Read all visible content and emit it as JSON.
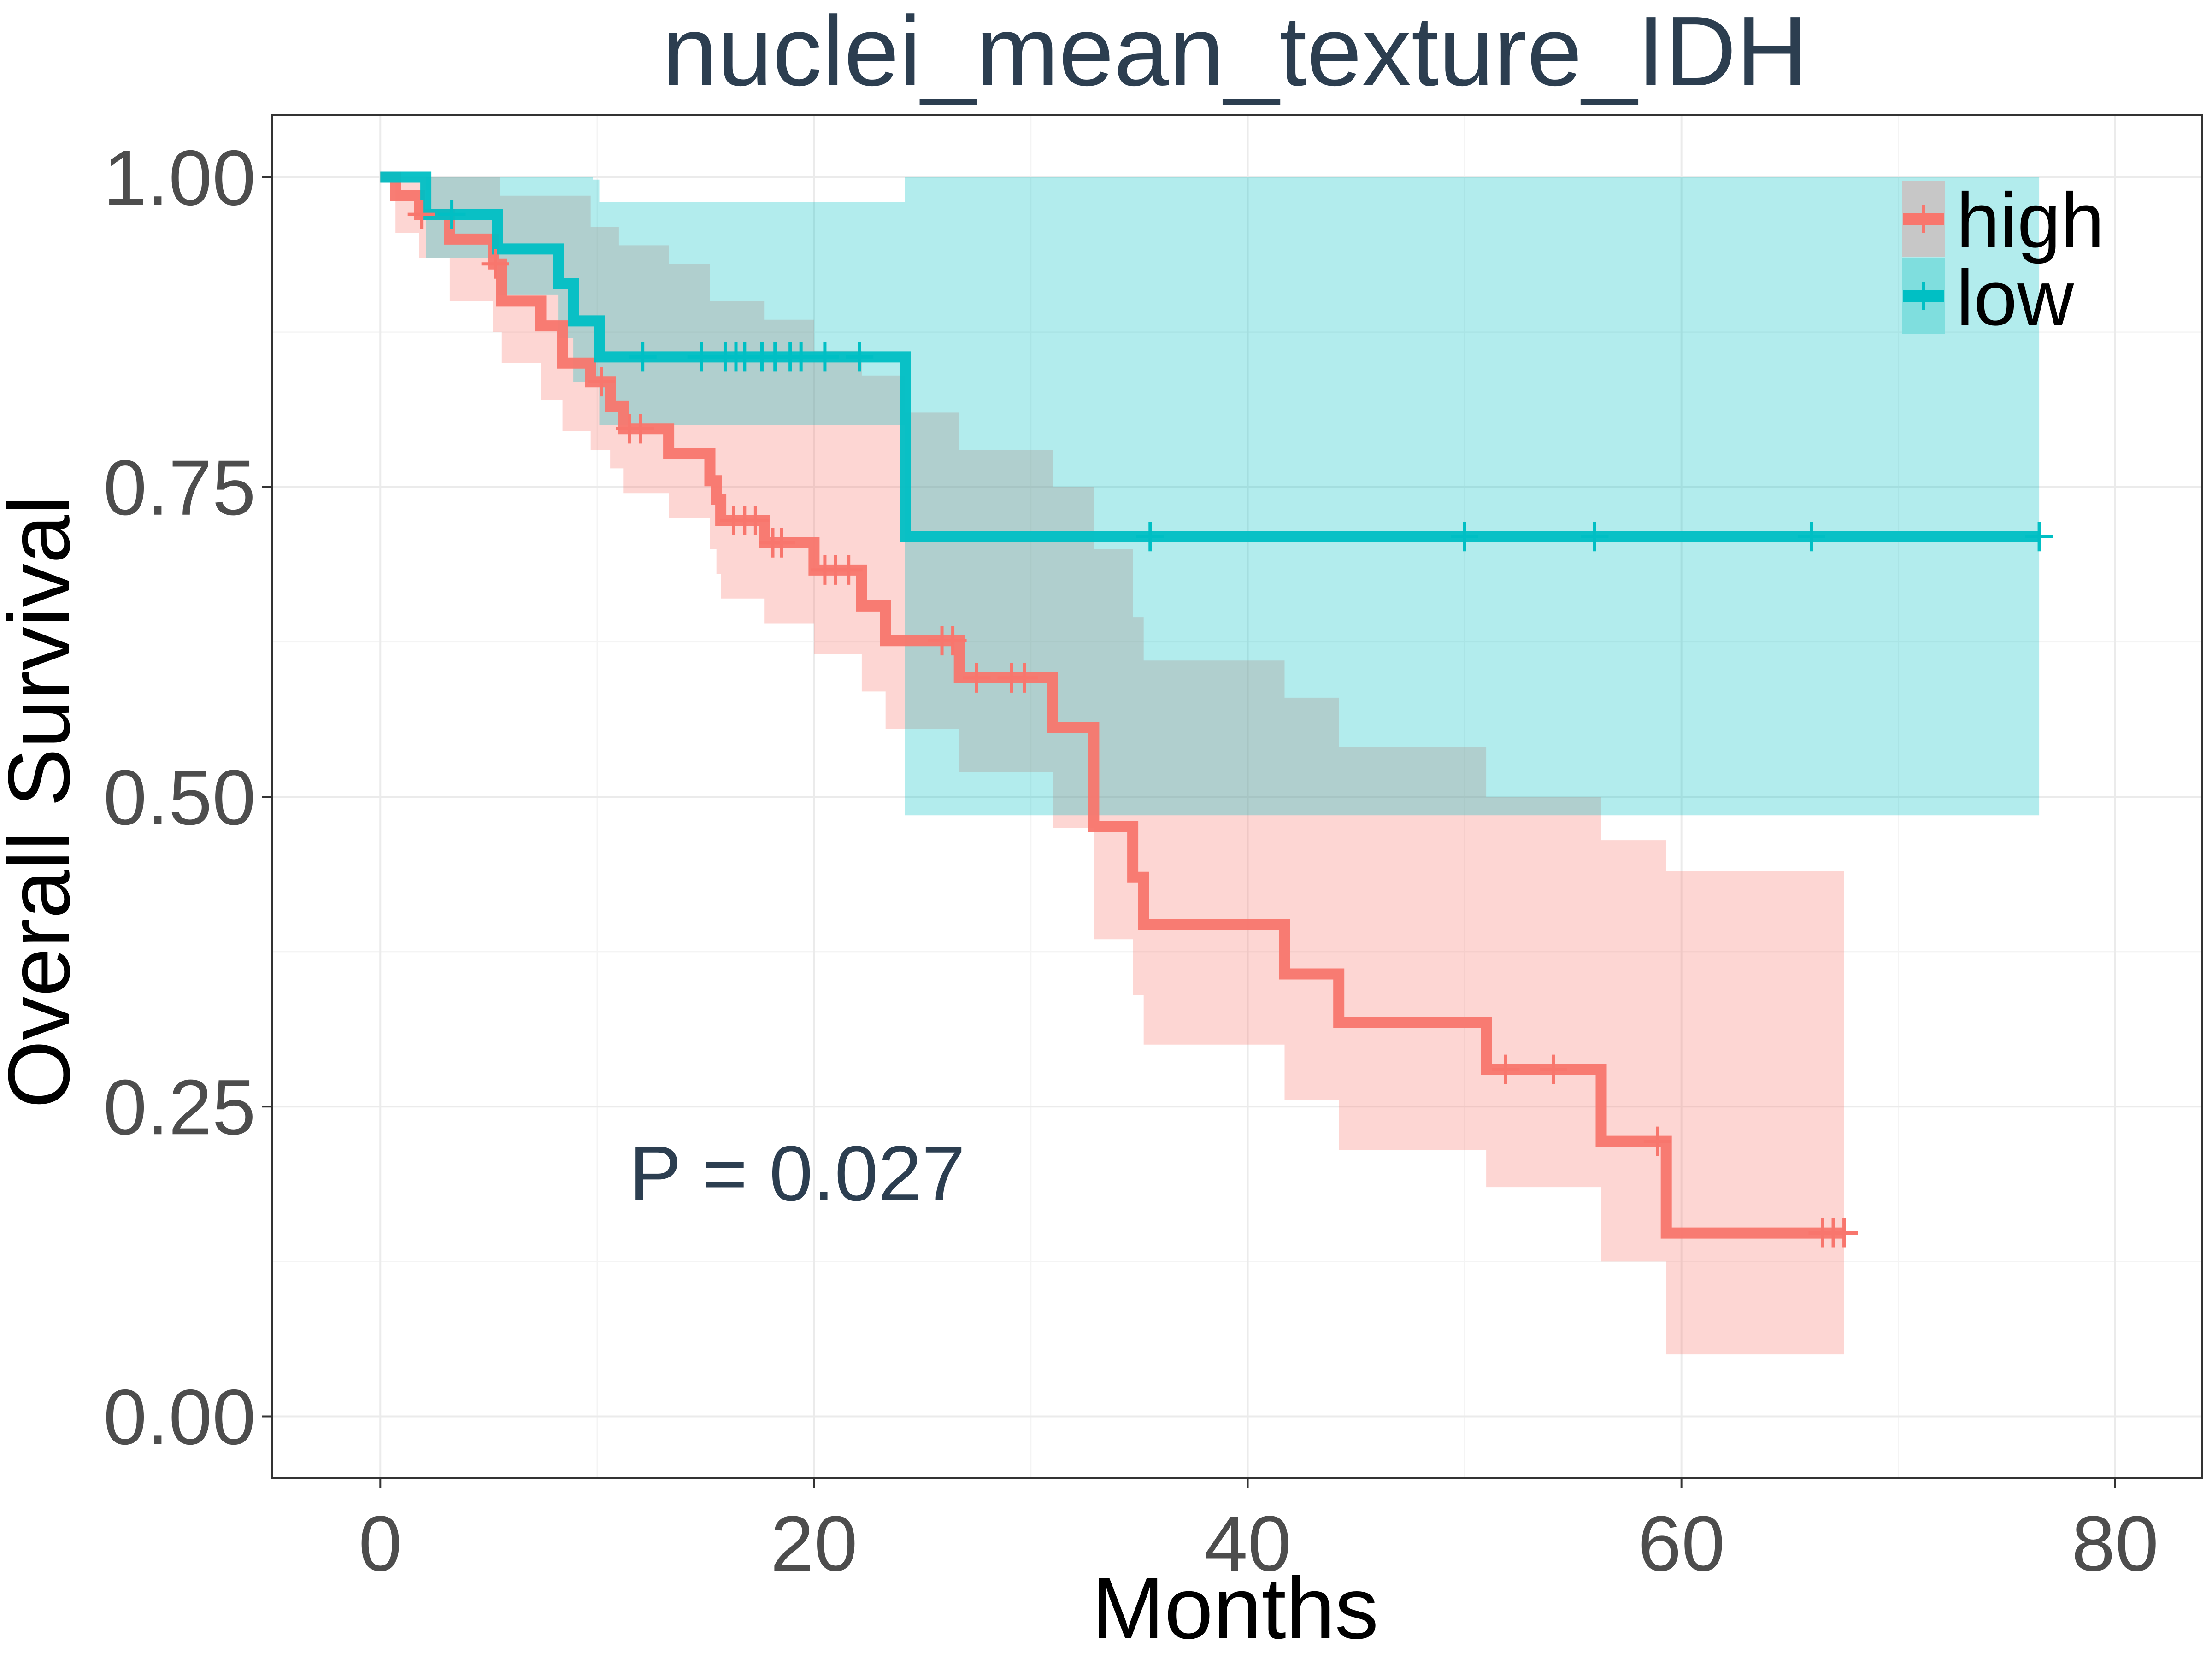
{
  "chart_data": {
    "type": "line",
    "subtype": "kaplan-meier survival curve with confidence bands",
    "title": "nuclei_mean_texture_IDH",
    "xlabel": "Months",
    "ylabel": "Overall Survival",
    "xlim": [
      -5,
      84
    ],
    "ylim": [
      -0.05,
      1.05
    ],
    "x_ticks": [
      0,
      20,
      40,
      60,
      80
    ],
    "x_tick_labels": [
      "0",
      "20",
      "40",
      "60",
      "80"
    ],
    "y_ticks": [
      0,
      0.25,
      0.5,
      0.75,
      1.0
    ],
    "y_tick_labels": [
      "0.00",
      "0.25",
      "0.50",
      "0.75",
      "1.00"
    ],
    "grid": true,
    "legend_position": "top-right inside",
    "annotation": "P = 0.027",
    "series": [
      {
        "name": "high",
        "color": "#F8766D",
        "steps": [
          [
            0,
            1.0
          ],
          [
            0.7,
            0.985
          ],
          [
            1.8,
            0.97
          ],
          [
            3.2,
            0.95
          ],
          [
            5.2,
            0.93
          ],
          [
            5.6,
            0.9
          ],
          [
            7.4,
            0.88
          ],
          [
            8.4,
            0.85
          ],
          [
            9.7,
            0.835
          ],
          [
            10.6,
            0.815
          ],
          [
            11.2,
            0.797
          ],
          [
            13.3,
            0.777
          ],
          [
            15.2,
            0.755
          ],
          [
            15.5,
            0.74
          ],
          [
            15.7,
            0.723
          ],
          [
            17.7,
            0.705
          ],
          [
            20.0,
            0.683
          ],
          [
            22.2,
            0.654
          ],
          [
            23.3,
            0.626
          ],
          [
            26.7,
            0.596
          ],
          [
            31.0,
            0.556
          ],
          [
            32.9,
            0.476
          ],
          [
            34.7,
            0.435
          ],
          [
            35.2,
            0.397
          ],
          [
            41.7,
            0.357
          ],
          [
            44.2,
            0.318
          ],
          [
            51.0,
            0.28
          ],
          [
            56.3,
            0.222
          ],
          [
            59.3,
            0.148
          ],
          [
            67.5,
            0.148
          ]
        ],
        "ci_upper": [
          [
            0,
            1.0
          ],
          [
            5.5,
            0.985
          ],
          [
            9.7,
            0.96
          ],
          [
            11.0,
            0.945
          ],
          [
            13.3,
            0.93
          ],
          [
            15.2,
            0.9
          ],
          [
            17.7,
            0.885
          ],
          [
            20.0,
            0.86
          ],
          [
            22.2,
            0.84
          ],
          [
            24.2,
            0.81
          ],
          [
            26.7,
            0.78
          ],
          [
            31.0,
            0.75
          ],
          [
            32.9,
            0.7
          ],
          [
            34.7,
            0.645
          ],
          [
            35.2,
            0.61
          ],
          [
            41.7,
            0.58
          ],
          [
            44.2,
            0.54
          ],
          [
            51.0,
            0.5
          ],
          [
            56.3,
            0.465
          ],
          [
            59.3,
            0.44
          ],
          [
            67.5,
            0.44
          ]
        ],
        "ci_lower": [
          [
            0,
            1.0
          ],
          [
            0.7,
            0.955
          ],
          [
            1.8,
            0.935
          ],
          [
            3.2,
            0.9
          ],
          [
            5.2,
            0.875
          ],
          [
            5.6,
            0.85
          ],
          [
            7.4,
            0.82
          ],
          [
            8.4,
            0.795
          ],
          [
            9.7,
            0.78
          ],
          [
            10.6,
            0.765
          ],
          [
            11.2,
            0.745
          ],
          [
            13.3,
            0.725
          ],
          [
            15.2,
            0.7
          ],
          [
            15.5,
            0.68
          ],
          [
            15.7,
            0.66
          ],
          [
            17.7,
            0.64
          ],
          [
            20.0,
            0.615
          ],
          [
            22.2,
            0.585
          ],
          [
            23.3,
            0.555
          ],
          [
            26.7,
            0.52
          ],
          [
            31.0,
            0.475
          ],
          [
            32.9,
            0.385
          ],
          [
            34.7,
            0.34
          ],
          [
            35.2,
            0.3
          ],
          [
            41.7,
            0.255
          ],
          [
            44.2,
            0.215
          ],
          [
            51.0,
            0.185
          ],
          [
            56.3,
            0.125
          ],
          [
            59.3,
            0.05
          ],
          [
            67.5,
            0.05
          ]
        ],
        "censored": [
          [
            1.9,
            0.97
          ],
          [
            5.3,
            0.93
          ],
          [
            10.2,
            0.835
          ],
          [
            11.5,
            0.797
          ],
          [
            12.0,
            0.797
          ],
          [
            16.3,
            0.723
          ],
          [
            16.8,
            0.723
          ],
          [
            17.3,
            0.723
          ],
          [
            18.1,
            0.705
          ],
          [
            18.5,
            0.705
          ],
          [
            20.5,
            0.683
          ],
          [
            21.0,
            0.683
          ],
          [
            21.6,
            0.683
          ],
          [
            25.9,
            0.626
          ],
          [
            26.4,
            0.626
          ],
          [
            27.5,
            0.596
          ],
          [
            29.1,
            0.596
          ],
          [
            29.7,
            0.596
          ],
          [
            51.9,
            0.28
          ],
          [
            54.1,
            0.28
          ],
          [
            58.9,
            0.222
          ],
          [
            66.5,
            0.148
          ],
          [
            67.0,
            0.148
          ],
          [
            67.5,
            0.148
          ]
        ]
      },
      {
        "name": "low",
        "color": "#00BFC4",
        "steps": [
          [
            0,
            1.0
          ],
          [
            2.1,
            0.97
          ],
          [
            5.4,
            0.942
          ],
          [
            8.2,
            0.914
          ],
          [
            8.9,
            0.884
          ],
          [
            10.1,
            0.855
          ],
          [
            24.2,
            0.71
          ],
          [
            76.5,
            0.71
          ]
        ],
        "ci_upper": [
          [
            0,
            1.0
          ],
          [
            9.8,
            0.998
          ],
          [
            10.1,
            0.98
          ],
          [
            24.2,
            1.0
          ],
          [
            76.5,
            1.0
          ]
        ],
        "ci_lower": [
          [
            0,
            1.0
          ],
          [
            2.1,
            0.935
          ],
          [
            5.4,
            0.905
          ],
          [
            8.2,
            0.87
          ],
          [
            8.9,
            0.835
          ],
          [
            10.1,
            0.8
          ],
          [
            24.2,
            0.485
          ],
          [
            76.5,
            0.485
          ]
        ],
        "censored": [
          [
            3.3,
            0.97
          ],
          [
            12.1,
            0.855
          ],
          [
            14.8,
            0.855
          ],
          [
            15.9,
            0.855
          ],
          [
            16.4,
            0.855
          ],
          [
            16.8,
            0.855
          ],
          [
            17.6,
            0.855
          ],
          [
            18.2,
            0.855
          ],
          [
            18.9,
            0.855
          ],
          [
            19.4,
            0.855
          ],
          [
            20.5,
            0.855
          ],
          [
            22.1,
            0.855
          ],
          [
            35.5,
            0.71
          ],
          [
            50.0,
            0.71
          ],
          [
            56.0,
            0.71
          ],
          [
            66.0,
            0.71
          ],
          [
            76.5,
            0.71
          ]
        ]
      }
    ]
  }
}
